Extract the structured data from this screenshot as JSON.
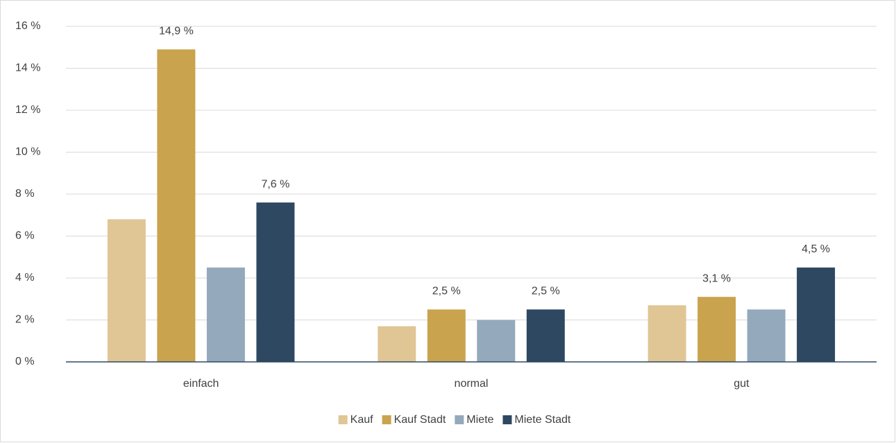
{
  "chart_data": {
    "type": "bar",
    "categories": [
      "einfach",
      "normal",
      "gut"
    ],
    "series": [
      {
        "name": "Kauf",
        "color": "#e0c595",
        "values": [
          6.8,
          1.7,
          2.7
        ],
        "value_labels": [
          null,
          null,
          null
        ]
      },
      {
        "name": "Kauf Stadt",
        "color": "#c9a34d",
        "values": [
          14.9,
          2.5,
          3.1
        ],
        "value_labels": [
          "14,9 %",
          "2,5 %",
          "3,1 %"
        ]
      },
      {
        "name": "Miete",
        "color": "#95a9bd",
        "values": [
          4.5,
          2.0,
          2.5
        ],
        "value_labels": [
          null,
          null,
          null
        ]
      },
      {
        "name": "Miete Stadt",
        "color": "#2e4862",
        "values": [
          7.6,
          2.5,
          4.5
        ],
        "value_labels": [
          "7,6 %",
          "2,5 %",
          "4,5 %"
        ]
      }
    ],
    "ylim": [
      0,
      16
    ],
    "yticks": [
      {
        "value": 0,
        "label": "0 %"
      },
      {
        "value": 2,
        "label": "2 %"
      },
      {
        "value": 4,
        "label": "4 %"
      },
      {
        "value": 6,
        "label": "6 %"
      },
      {
        "value": 8,
        "label": "8 %"
      },
      {
        "value": 10,
        "label": "10 %"
      },
      {
        "value": 12,
        "label": "12 %"
      },
      {
        "value": 14,
        "label": "14 %"
      },
      {
        "value": 16,
        "label": "16 %"
      }
    ],
    "grid": true,
    "legend": "bottom"
  }
}
